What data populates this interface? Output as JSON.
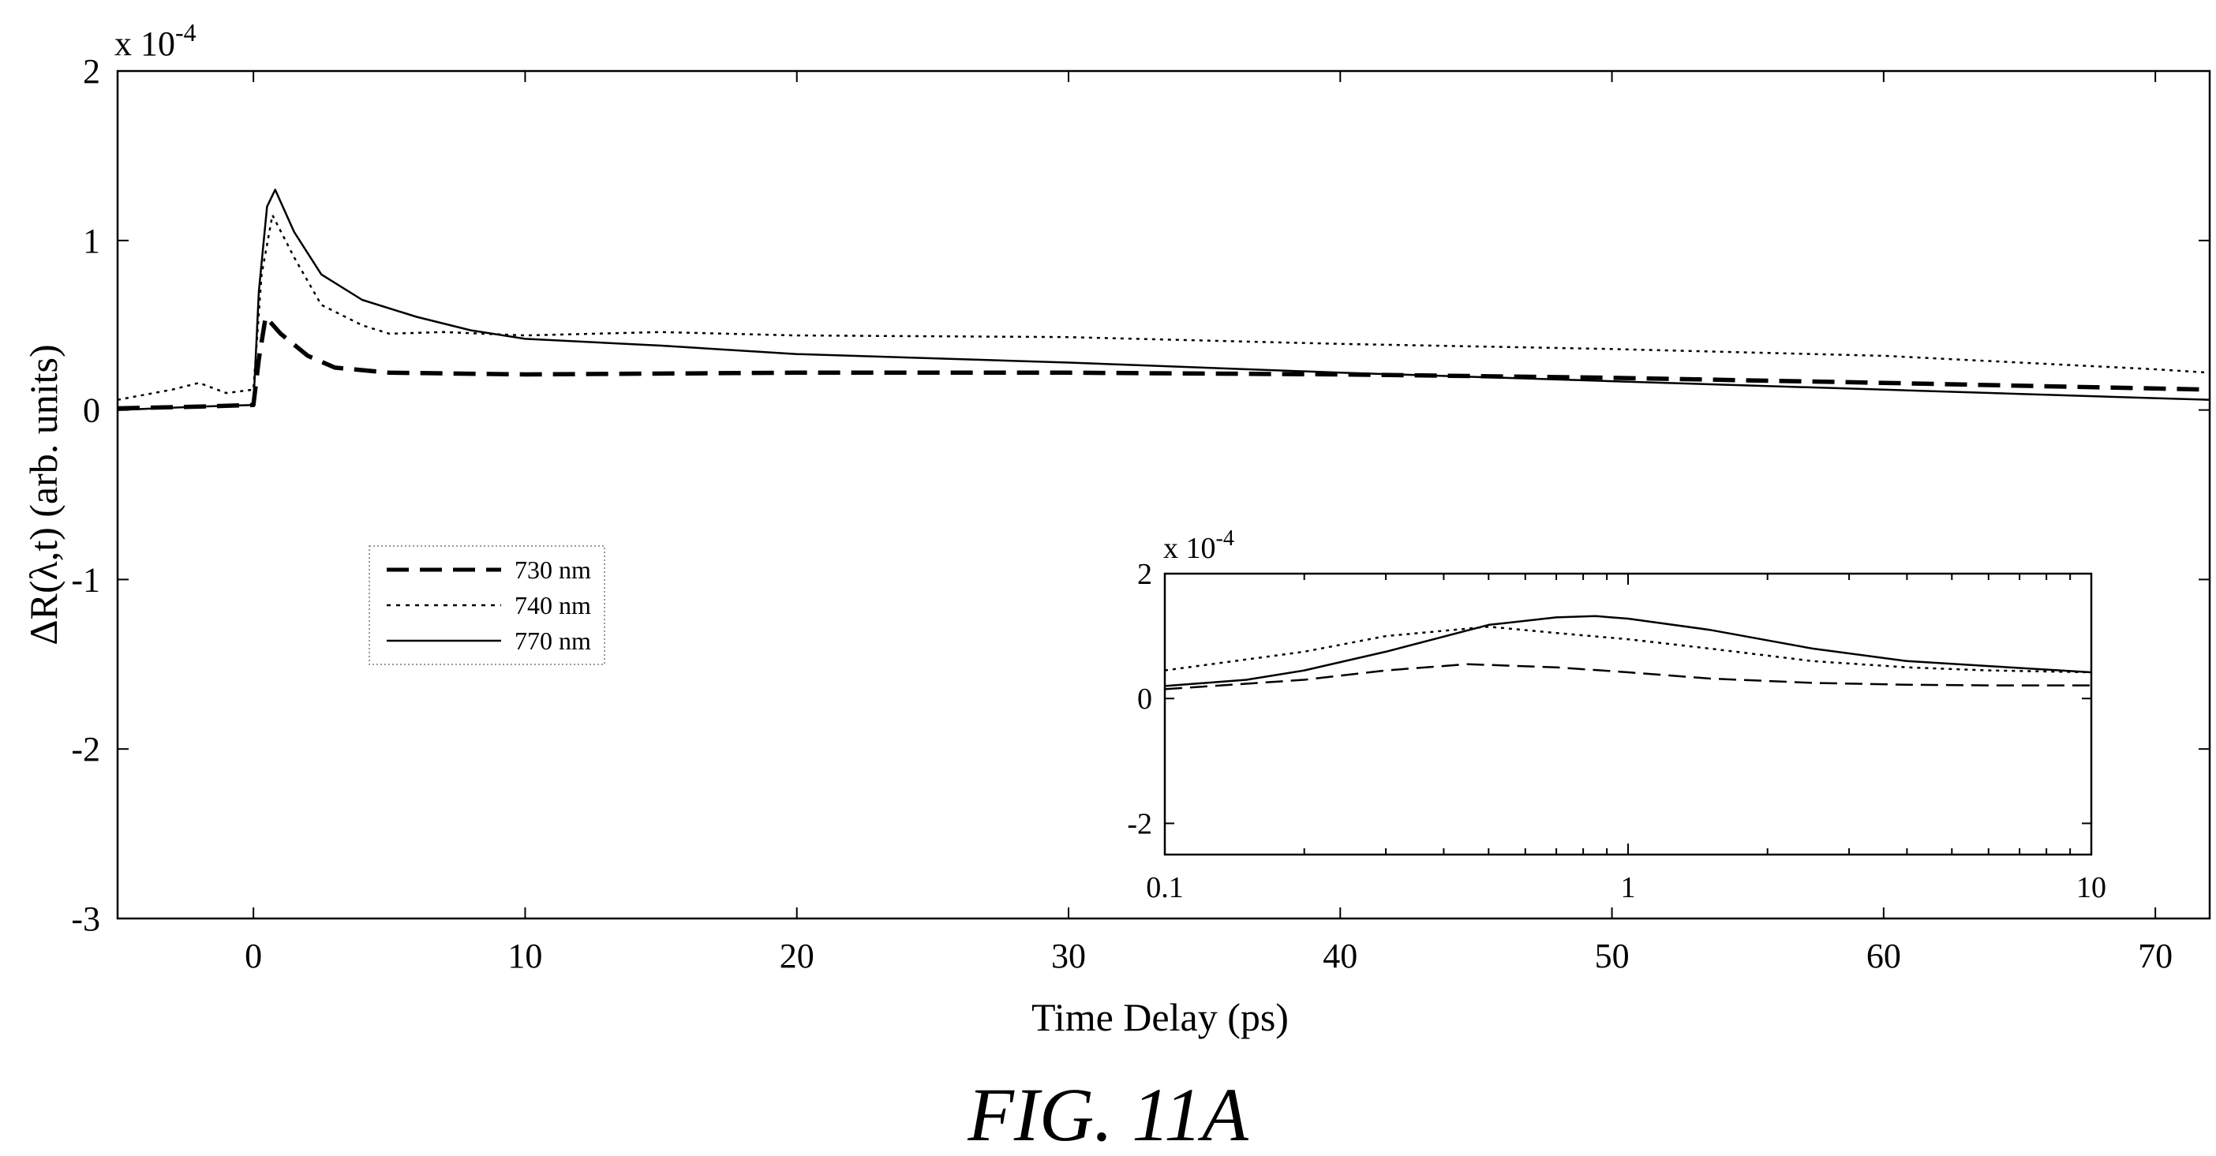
{
  "caption": "FIG. 11A",
  "chart_data": [
    {
      "type": "line",
      "xlabel": "Time Delay (ps)",
      "ylabel_prefix": "ΔR(λ,t) (arb. units)",
      "y_multiplier": "x 10",
      "y_multiplier_exp": "-4",
      "xlim": [
        -5,
        72
      ],
      "ylim": [
        -3,
        2
      ],
      "x_ticks": [
        0,
        10,
        20,
        30,
        40,
        50,
        60,
        70
      ],
      "y_ticks": [
        -3,
        -2,
        -1,
        0,
        1,
        2
      ],
      "grid": false,
      "legend_position": "middle-left",
      "series": [
        {
          "name": "730 nm",
          "style": "dashed-thick",
          "x": [
            -5,
            -2,
            0,
            0.2,
            0.45,
            1,
            2,
            3,
            5,
            10,
            20,
            30,
            40,
            50,
            60,
            72
          ],
          "y": [
            0.01,
            0.02,
            0.03,
            0.3,
            0.55,
            0.45,
            0.32,
            0.25,
            0.22,
            0.21,
            0.22,
            0.22,
            0.21,
            0.19,
            0.16,
            0.12
          ]
        },
        {
          "name": "740 nm",
          "style": "dotted",
          "x": [
            -5,
            -3,
            -2,
            -1,
            0,
            0.3,
            0.7,
            1.5,
            2.5,
            4,
            5,
            7,
            10,
            15,
            20,
            30,
            40,
            50,
            60,
            70,
            72
          ],
          "y": [
            0.06,
            0.12,
            0.16,
            0.1,
            0.12,
            0.8,
            1.15,
            0.9,
            0.62,
            0.5,
            0.45,
            0.46,
            0.44,
            0.46,
            0.44,
            0.43,
            0.39,
            0.36,
            0.32,
            0.24,
            0.22
          ]
        },
        {
          "name": "770 nm",
          "style": "solid",
          "x": [
            -5,
            -2,
            0,
            0.2,
            0.5,
            0.8,
            1.5,
            2.5,
            4,
            6,
            8,
            10,
            15,
            20,
            30,
            40,
            50,
            60,
            70,
            72
          ],
          "y": [
            0.0,
            0.02,
            0.03,
            0.7,
            1.2,
            1.3,
            1.05,
            0.8,
            0.65,
            0.55,
            0.47,
            0.42,
            0.38,
            0.33,
            0.28,
            0.22,
            0.17,
            0.12,
            0.07,
            0.06
          ]
        }
      ]
    },
    {
      "type": "line",
      "inset": true,
      "x_scale": "log",
      "xlim": [
        0.1,
        10
      ],
      "ylim": [
        -2.5,
        2
      ],
      "x_tick_labels": [
        "0.1",
        "1",
        "10"
      ],
      "x_tick_values": [
        0.1,
        1,
        10
      ],
      "y_ticks": [
        -2,
        0,
        2
      ],
      "y_multiplier": "x 10",
      "y_multiplier_exp": "-4",
      "grid": false,
      "series": [
        {
          "name": "730 nm",
          "style": "dashed",
          "x": [
            0.1,
            0.2,
            0.3,
            0.45,
            0.7,
            1,
            1.5,
            2.5,
            4,
            6,
            10
          ],
          "y": [
            0.15,
            0.3,
            0.45,
            0.55,
            0.5,
            0.42,
            0.32,
            0.25,
            0.22,
            0.21,
            0.21
          ]
        },
        {
          "name": "740 nm",
          "style": "dotted",
          "x": [
            0.1,
            0.2,
            0.3,
            0.5,
            0.7,
            1,
            1.5,
            2.5,
            4,
            6,
            10
          ],
          "y": [
            0.45,
            0.75,
            1.0,
            1.15,
            1.05,
            0.95,
            0.8,
            0.6,
            0.5,
            0.45,
            0.42
          ]
        },
        {
          "name": "770 nm",
          "style": "solid",
          "x": [
            0.1,
            0.15,
            0.2,
            0.3,
            0.5,
            0.7,
            0.85,
            1,
            1.5,
            2.5,
            4,
            6,
            10
          ],
          "y": [
            0.2,
            0.3,
            0.45,
            0.75,
            1.18,
            1.3,
            1.32,
            1.28,
            1.1,
            0.8,
            0.6,
            0.52,
            0.42
          ]
        }
      ]
    }
  ]
}
